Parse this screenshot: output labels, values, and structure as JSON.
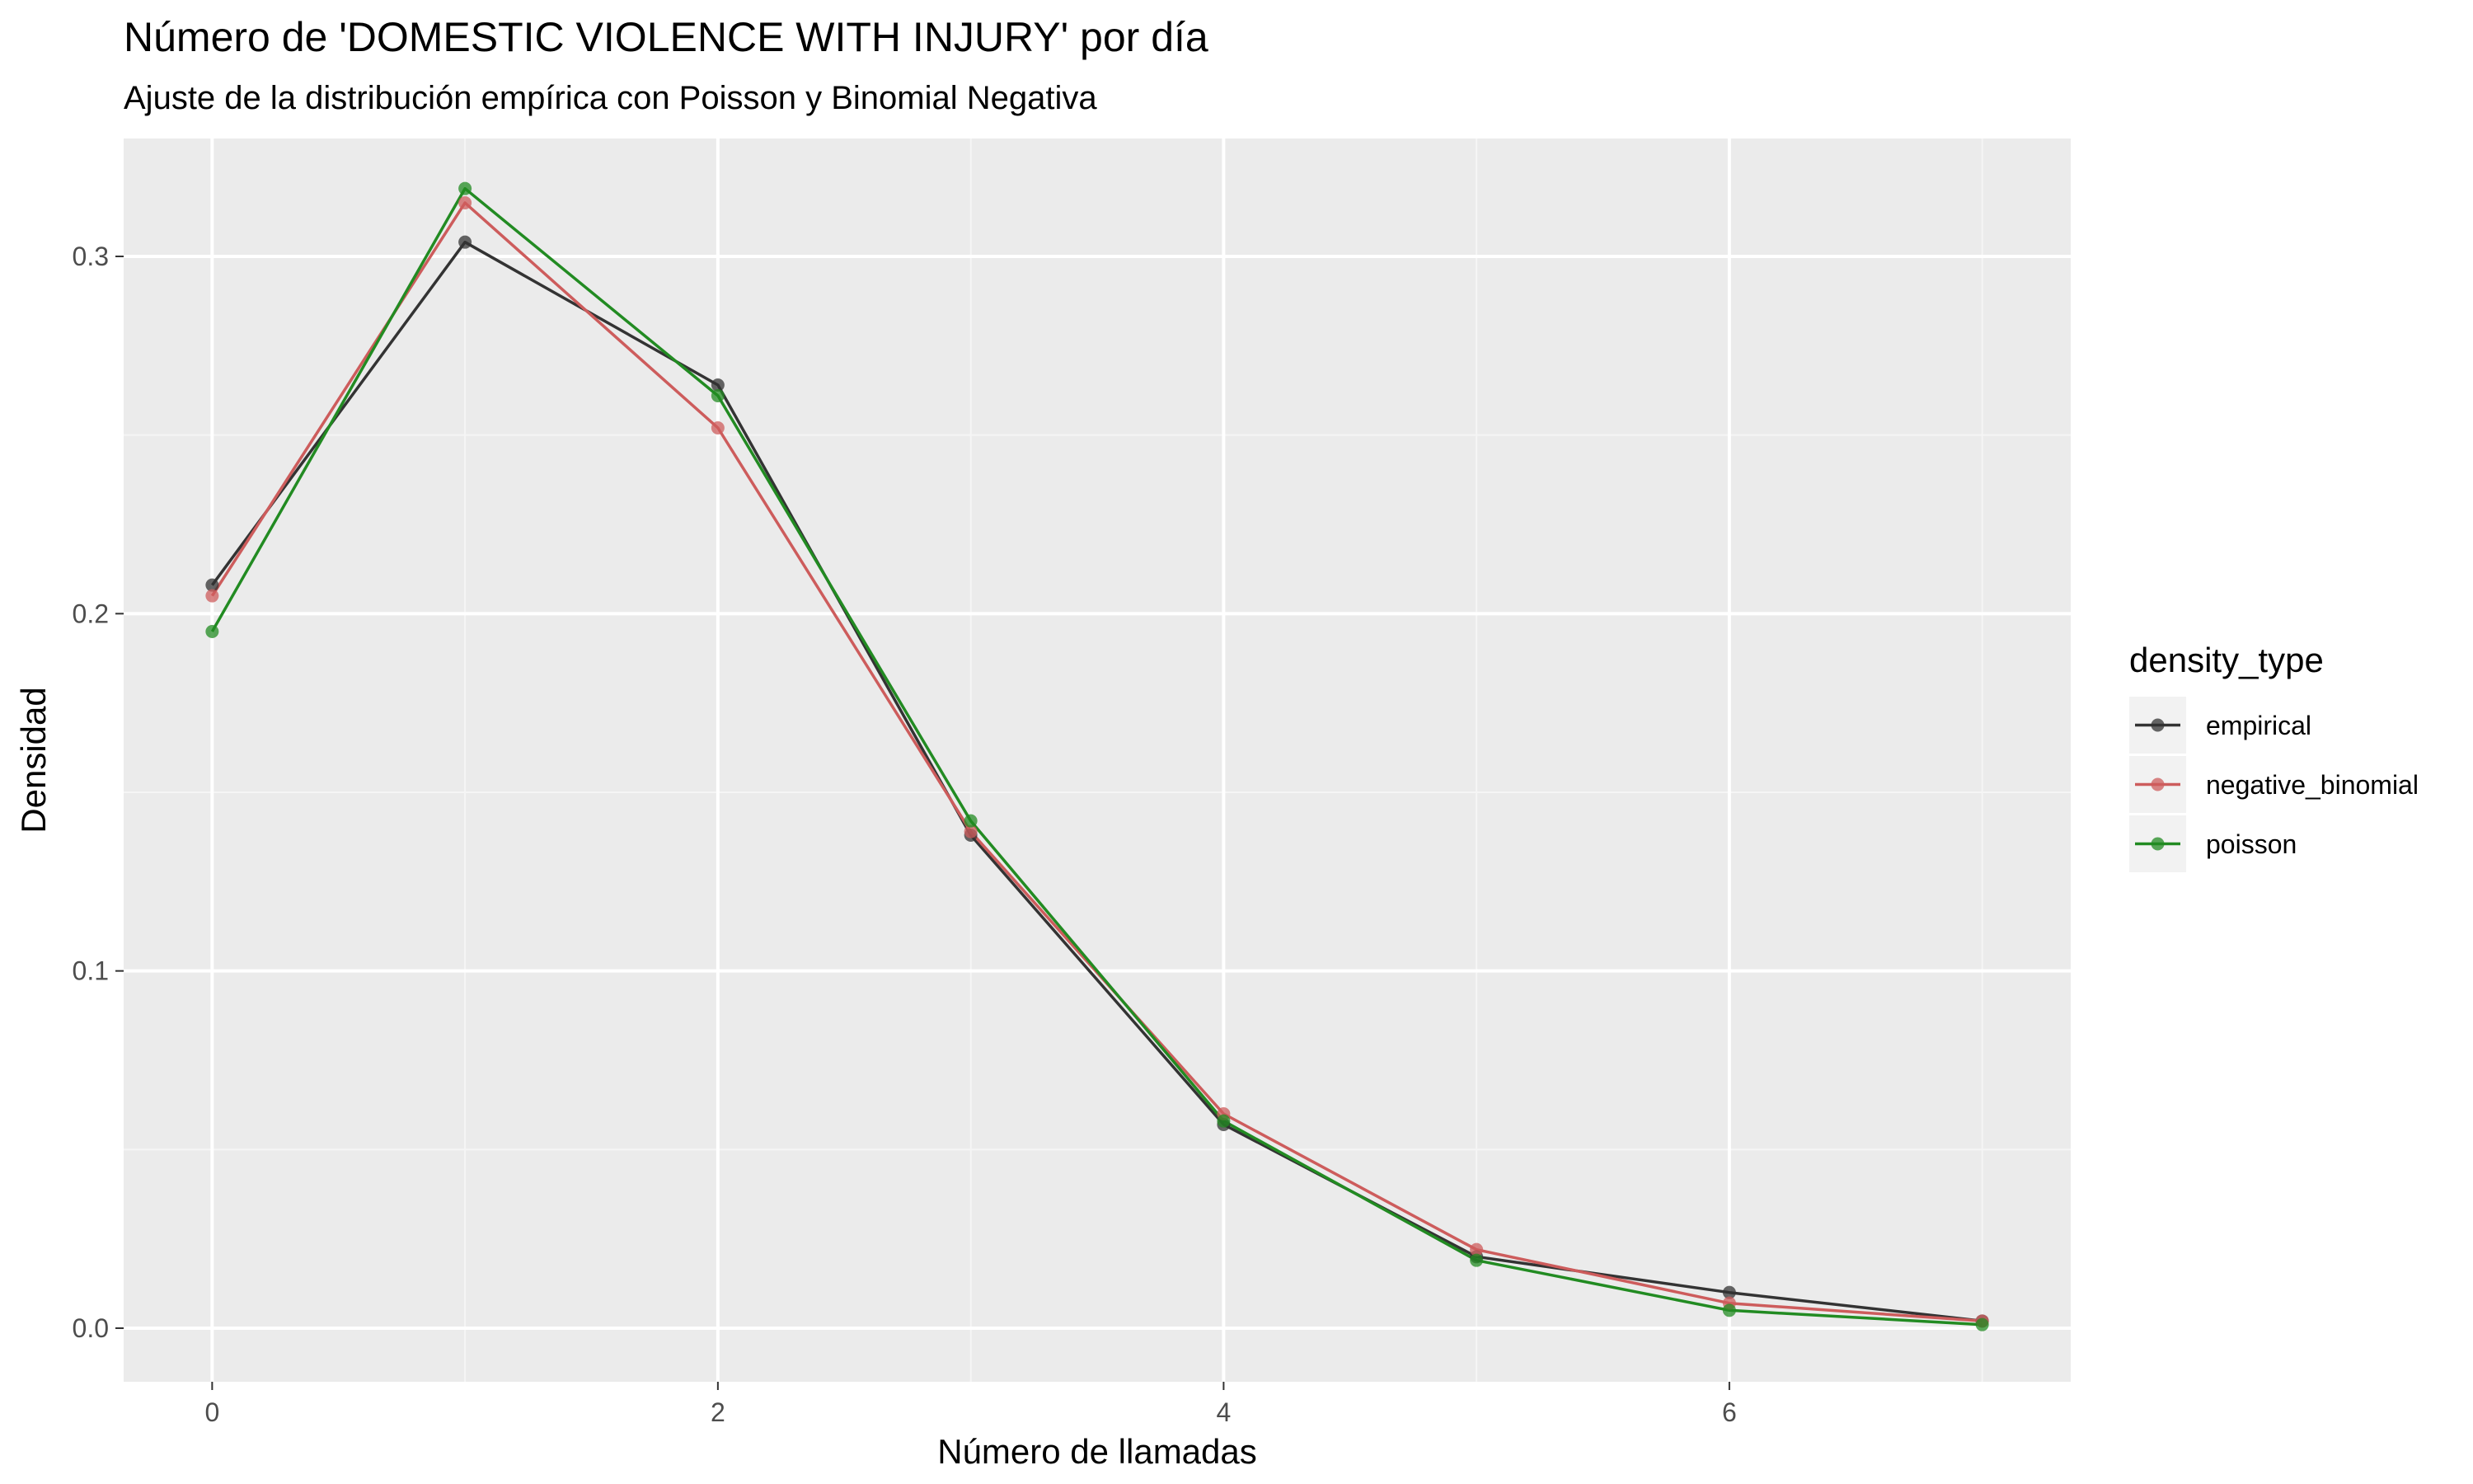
{
  "chart_data": {
    "type": "line",
    "title": "Número de 'DOMESTIC VIOLENCE WITH INJURY' por día",
    "subtitle": "Ajuste de la distribución empírica con Poisson y Binomial Negativa",
    "xlabel": "Número de llamadas",
    "ylabel": "Densidad",
    "xlim": [
      -0.35,
      7.35
    ],
    "ylim": [
      -0.015,
      0.333
    ],
    "x_ticks": [
      0,
      2,
      4,
      6
    ],
    "x_tick_labels": [
      "0",
      "2",
      "4",
      "6"
    ],
    "y_ticks": [
      0.0,
      0.1,
      0.2,
      0.3
    ],
    "y_tick_labels": [
      "0.0",
      "0.1",
      "0.2",
      "0.3"
    ],
    "grid": true,
    "legend": {
      "title": "density_type",
      "placement": "right"
    },
    "x": [
      0,
      1,
      2,
      3,
      4,
      5,
      6,
      7
    ],
    "series": [
      {
        "name": "empirical",
        "color": "#333333",
        "values": [
          0.208,
          0.304,
          0.264,
          0.138,
          0.057,
          0.02,
          0.01,
          0.002
        ]
      },
      {
        "name": "negative_binomial",
        "color": "#cd5c5c",
        "values": [
          0.205,
          0.315,
          0.252,
          0.139,
          0.06,
          0.022,
          0.007,
          0.002
        ]
      },
      {
        "name": "poisson",
        "color": "#228b22",
        "values": [
          0.195,
          0.319,
          0.261,
          0.142,
          0.058,
          0.019,
          0.005,
          0.001
        ]
      }
    ]
  }
}
